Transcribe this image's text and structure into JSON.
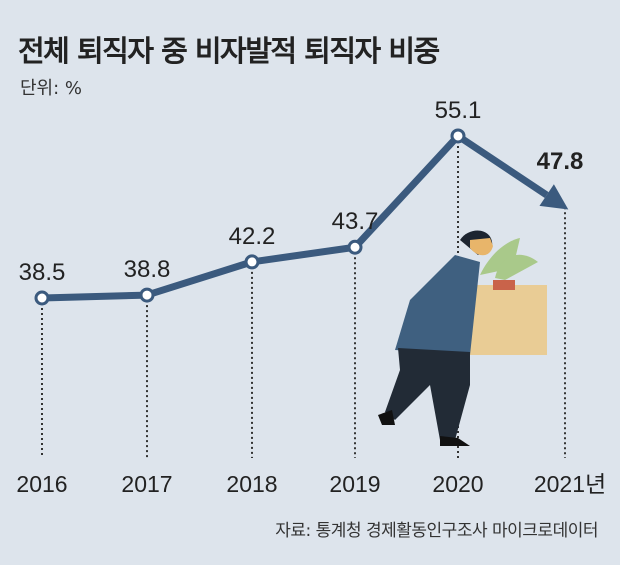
{
  "chart_data": {
    "type": "line",
    "title": "전체 퇴직자 중 비자발적 퇴직자 비중",
    "unit_label": "단위: %",
    "categories": [
      "2016",
      "2017",
      "2018",
      "2019",
      "2020",
      "2021년"
    ],
    "values": [
      38.5,
      38.8,
      42.2,
      43.7,
      55.1,
      47.8
    ],
    "value_labels": [
      "38.5",
      "38.8",
      "42.2",
      "43.7",
      "55.1",
      "47.8"
    ],
    "source": "자료: 통계청 경제활동인구조사 마이크로데이터",
    "xlabel": "",
    "ylabel": "",
    "grid": false,
    "colors": {
      "line": "#3b5a7e",
      "background": "#dde4ec"
    }
  }
}
